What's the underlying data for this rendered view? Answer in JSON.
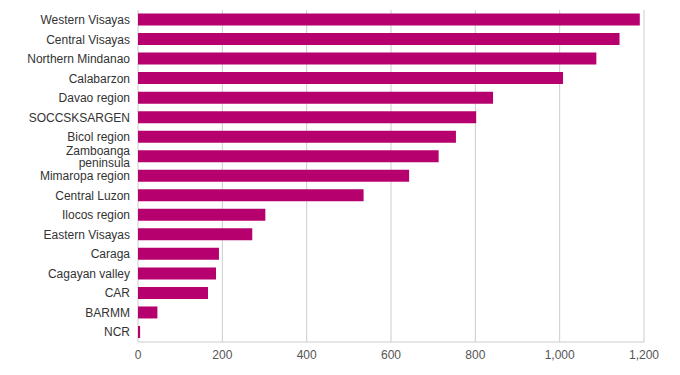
{
  "chart_data": {
    "type": "bar",
    "orientation": "horizontal",
    "categories": [
      "Western Visayas",
      "Central Visayas",
      "Northern Mindanao",
      "Calabarzon",
      "Davao region",
      "SOCCSKSARGEN",
      "Bicol region",
      "Zamboanga peninsula",
      "Mimaropa region",
      "Central Luzon",
      "Ilocos region",
      "Eastern Visayas",
      "Caraga",
      "Cagayan valley",
      "CAR",
      "BARMM",
      "NCR"
    ],
    "values": [
      1190,
      1142,
      1087,
      1008,
      842,
      802,
      754,
      713,
      643,
      535,
      302,
      271,
      192,
      185,
      166,
      46,
      5
    ],
    "color": "#b5006e",
    "xlim": [
      0,
      1200
    ],
    "xticks": [
      0,
      200,
      400,
      600,
      800,
      {
        "value": 1000,
        "label": "1,000"
      },
      {
        "value": 1200,
        "label": "1,200"
      }
    ],
    "grid": true
  }
}
